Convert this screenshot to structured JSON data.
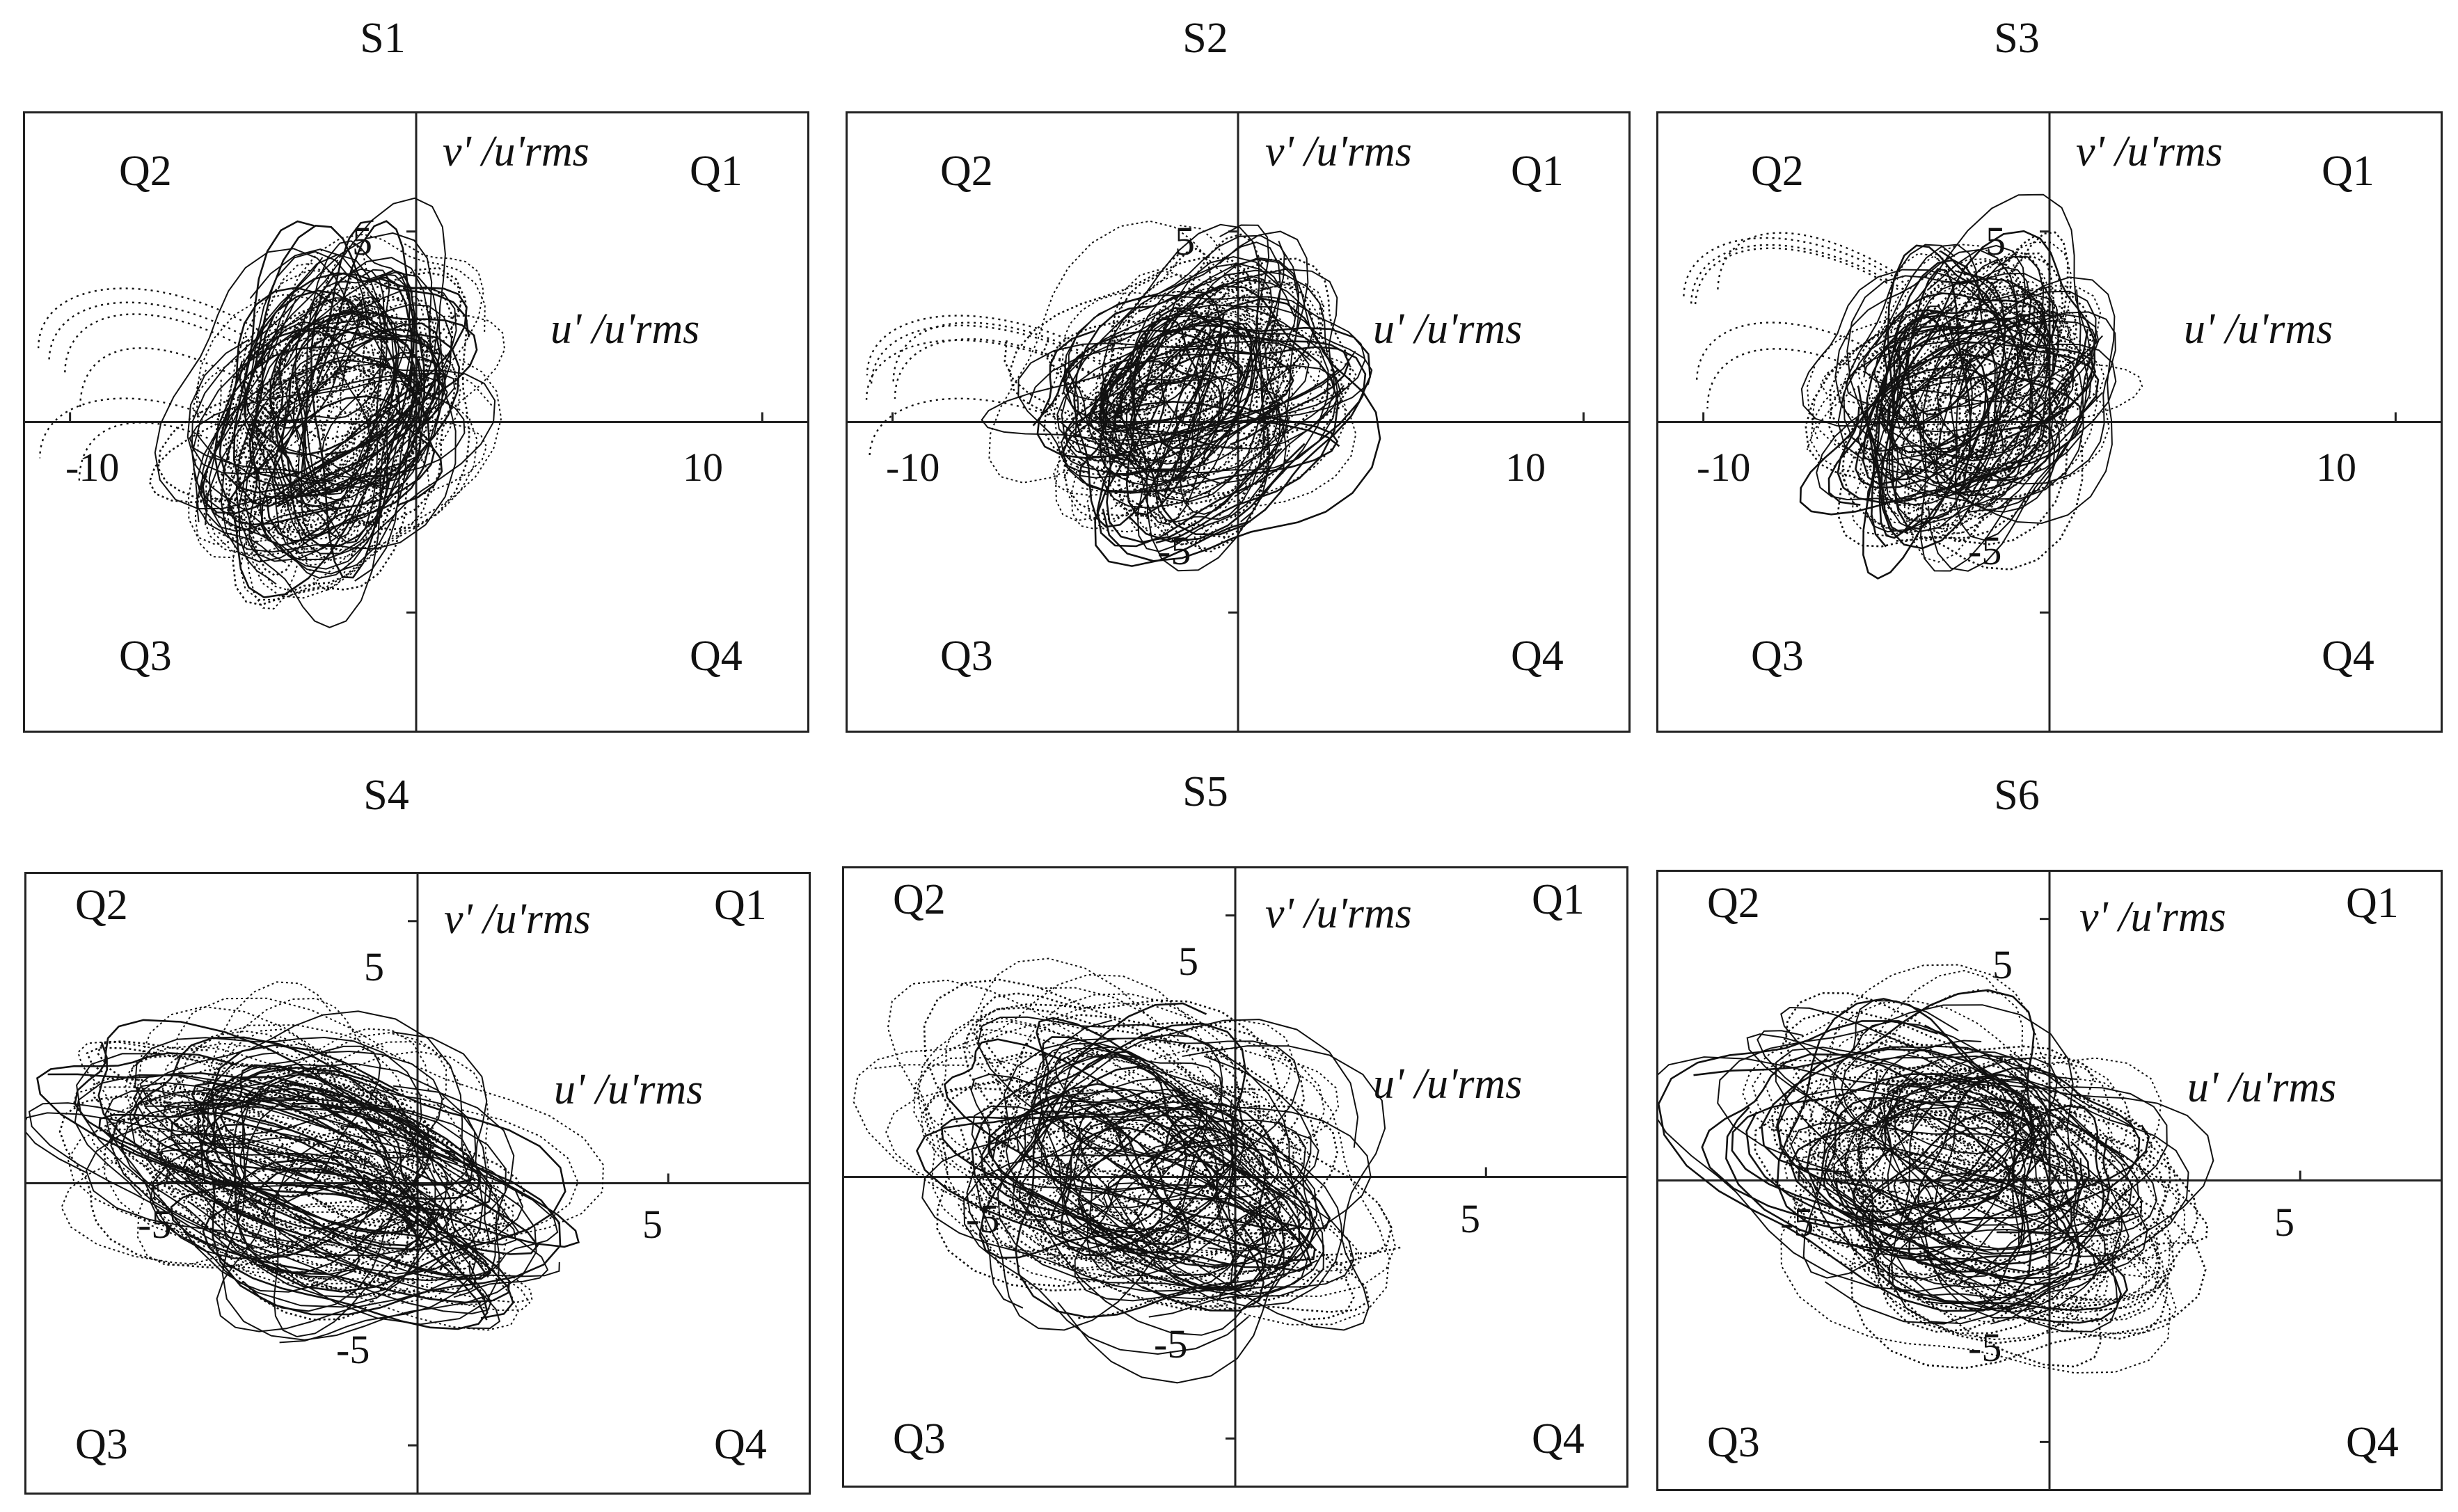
{
  "figure": {
    "panels": [
      {
        "title": "S1",
        "quadrants": [
          "Q1",
          "Q2",
          "Q3",
          "Q4"
        ],
        "xlabel": "u' /u'rms",
        "ylabel": "v' /u'rms",
        "x_ticks": [
          "-10",
          "10"
        ],
        "y_ticks": [
          "5"
        ]
      },
      {
        "title": "S2",
        "quadrants": [
          "Q1",
          "Q2",
          "Q3",
          "Q4"
        ],
        "xlabel": "u' /u'rms",
        "ylabel": "v' /u'rms",
        "x_ticks": [
          "-10",
          "10"
        ],
        "y_ticks": [
          "5",
          "-5"
        ]
      },
      {
        "title": "S3",
        "quadrants": [
          "Q1",
          "Q2",
          "Q3",
          "Q4"
        ],
        "xlabel": "u' /u'rms",
        "ylabel": "v' /u'rms",
        "x_ticks": [
          "-10",
          "10"
        ],
        "y_ticks": [
          "5",
          "-5"
        ]
      },
      {
        "title": "S4",
        "quadrants": [
          "Q1",
          "Q2",
          "Q3",
          "Q4"
        ],
        "xlabel": "u' /u'rms",
        "ylabel": "v' /u'rms",
        "x_ticks": [
          "-5",
          "5"
        ],
        "y_ticks": [
          "5",
          "-5"
        ]
      },
      {
        "title": "S5",
        "quadrants": [
          "Q1",
          "Q2",
          "Q3",
          "Q4"
        ],
        "xlabel": "u' /u'rms",
        "ylabel": "v' /u'rms",
        "x_ticks": [
          "-5",
          "5"
        ],
        "y_ticks": [
          "5",
          "-5"
        ]
      },
      {
        "title": "S6",
        "quadrants": [
          "Q1",
          "Q2",
          "Q3",
          "Q4"
        ],
        "xlabel": "u' /u'rms",
        "ylabel": "v' /u'rms",
        "x_ticks": [
          "-5",
          "5"
        ],
        "y_ticks": [
          "5",
          "-5"
        ]
      }
    ]
  },
  "chart_data": [
    {
      "type": "scatter",
      "title": "S1",
      "xlabel": "u' /u'rms",
      "ylabel": "v' /u'rms",
      "xlim": [
        -11.3,
        11.3
      ],
      "ylim": [
        -8.1,
        8.1
      ],
      "center": [
        -2.5,
        0.2
      ],
      "spread": [
        3.2,
        3.6
      ],
      "tilt_deg": 0,
      "outlier_excursion": "Q2 to u'=-11"
    },
    {
      "type": "scatter",
      "title": "S2",
      "xlabel": "u' /u'rms",
      "ylabel": "v' /u'rms",
      "xlim": [
        -11.3,
        11.3
      ],
      "ylim": [
        -8.1,
        8.1
      ],
      "center": [
        -1.5,
        0.6
      ],
      "spread": [
        3.6,
        3.0
      ],
      "tilt_deg": 0,
      "outlier_excursion": "Q2/Q3 to u'=-11"
    },
    {
      "type": "scatter",
      "title": "S3",
      "xlabel": "u' /u'rms",
      "ylabel": "v' /u'rms",
      "xlim": [
        -11.3,
        11.3
      ],
      "ylim": [
        -8.1,
        8.1
      ],
      "center": [
        -2.3,
        0.8
      ],
      "spread": [
        3.2,
        3.2
      ],
      "tilt_deg": 0,
      "outlier_excursion": "Q2 to u'=-9"
    },
    {
      "type": "scatter",
      "title": "S4",
      "xlabel": "u' /u'rms",
      "ylabel": "v' /u'rms",
      "xlim": [
        -7.8,
        7.8
      ],
      "ylim": [
        -5.9,
        5.9
      ],
      "center": [
        -2.2,
        0.1
      ],
      "spread": [
        3.7,
        2.2
      ],
      "tilt_deg": -25
    },
    {
      "type": "scatter",
      "title": "S5",
      "xlabel": "u' /u'rms",
      "ylabel": "v' /u'rms",
      "xlim": [
        -7.8,
        7.8
      ],
      "ylim": [
        -5.9,
        5.9
      ],
      "center": [
        -1.8,
        0.1
      ],
      "spread": [
        3.6,
        2.4
      ],
      "tilt_deg": -35
    },
    {
      "type": "scatter",
      "title": "S6",
      "xlabel": "u' /u'rms",
      "ylabel": "v' /u'rms",
      "xlim": [
        -7.8,
        7.8
      ],
      "ylim": [
        -5.9,
        5.9
      ],
      "center": [
        -1.8,
        0.2
      ],
      "spread": [
        3.6,
        2.4
      ],
      "tilt_deg": -35
    }
  ]
}
